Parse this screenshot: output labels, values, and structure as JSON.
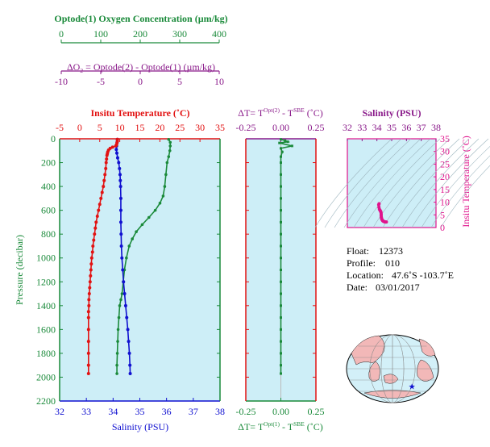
{
  "colors": {
    "oxygen": "#1a8a3a",
    "delta": "#8a1a8a",
    "temperature": "#e21212",
    "salinity": "#1010d0",
    "pressure": "#1a8a3a",
    "ts_points": "#e0138c",
    "panel_bg": "#cdeef7",
    "land": "#f2b8b8",
    "ocean": "#d3f0f8",
    "star": "#1010d0"
  },
  "axes": {
    "oxygen": {
      "label": "Optode(1) Oxygen Concentration (µm/kg)",
      "ticks": [
        "0",
        "100",
        "200",
        "300",
        "400"
      ],
      "range": [
        0,
        400
      ]
    },
    "delta_o2": {
      "label_parts": [
        "ΔO",
        "2",
        " = Optode(2) - Optode(1)   (µm/kg)"
      ],
      "ticks": [
        "-10",
        "-5",
        "0",
        "5",
        "10"
      ],
      "range": [
        -10,
        10
      ]
    },
    "temperature": {
      "label": "Insitu Temperature (˚C)",
      "ticks": [
        "-5",
        "0",
        "5",
        "10",
        "15",
        "20",
        "25",
        "30",
        "35"
      ],
      "range": [
        -5,
        35
      ]
    },
    "salinity": {
      "label": "Salinity (PSU)",
      "ticks": [
        "32",
        "33",
        "34",
        "35",
        "36",
        "37",
        "38"
      ],
      "range": [
        32,
        38
      ]
    },
    "pressure": {
      "label": "Pressure (decibar)",
      "ticks": [
        "0",
        "200",
        "400",
        "600",
        "800",
        "1000",
        "1200",
        "1400",
        "1600",
        "1800",
        "2000",
        "2200"
      ],
      "range": [
        0,
        2200
      ]
    },
    "delta_t_top": {
      "label_parts": [
        "ΔT= T",
        "Opt(2)",
        " - T",
        "SBE",
        " (˚C)"
      ],
      "ticks": [
        "-0.25",
        "0.00",
        "0.25"
      ],
      "range": [
        -0.25,
        0.25
      ]
    },
    "delta_t_bottom": {
      "label_parts": [
        "ΔT= T",
        "Opt(1)",
        " - T",
        "SBE",
        " (˚C)"
      ],
      "ticks": [
        "-0.25",
        "0.00",
        "0.25"
      ],
      "range": [
        -0.25,
        0.25
      ]
    },
    "ts_salinity": {
      "label": "Salinity (PSU)",
      "ticks": [
        "32",
        "33",
        "34",
        "35",
        "36",
        "37",
        "38"
      ],
      "range": [
        32,
        38
      ]
    },
    "ts_temperature": {
      "label": "Insitu Temperature (˚C)",
      "ticks": [
        "0",
        "5",
        "10",
        "15",
        "20",
        "25",
        "30",
        "35"
      ],
      "range": [
        0,
        35
      ]
    }
  },
  "info": {
    "float_label": "Float:",
    "float_value": "12373",
    "profile_label": "Profile:",
    "profile_value": "010",
    "location_label": "Location:",
    "location_value": "47.6˚S  -103.7˚E",
    "date_label": "Date:",
    "date_value": "03/01/2017"
  },
  "chart_data": [
    {
      "type": "line",
      "name": "profile-temperature",
      "x_axis": "Insitu Temperature (˚C)",
      "y_axis": "Pressure (decibar)",
      "points": [
        [
          9.4,
          5
        ],
        [
          9.4,
          20
        ],
        [
          9.3,
          35
        ],
        [
          9.2,
          50
        ],
        [
          9.0,
          60
        ],
        [
          8.2,
          70
        ],
        [
          7.6,
          80
        ],
        [
          7.2,
          95
        ],
        [
          7.0,
          110
        ],
        [
          6.9,
          125
        ],
        [
          6.8,
          140
        ],
        [
          6.7,
          170
        ],
        [
          6.6,
          200
        ],
        [
          6.5,
          250
        ],
        [
          6.3,
          300
        ],
        [
          6.1,
          350
        ],
        [
          5.9,
          400
        ],
        [
          5.6,
          450
        ],
        [
          5.3,
          500
        ],
        [
          5.0,
          550
        ],
        [
          4.7,
          600
        ],
        [
          4.4,
          650
        ],
        [
          4.1,
          700
        ],
        [
          3.9,
          750
        ],
        [
          3.7,
          800
        ],
        [
          3.5,
          850
        ],
        [
          3.3,
          900
        ],
        [
          3.2,
          950
        ],
        [
          3.0,
          1000
        ],
        [
          2.9,
          1050
        ],
        [
          2.8,
          1100
        ],
        [
          2.7,
          1150
        ],
        [
          2.6,
          1200
        ],
        [
          2.5,
          1250
        ],
        [
          2.4,
          1300
        ],
        [
          2.3,
          1350
        ],
        [
          2.3,
          1400
        ],
        [
          2.2,
          1450
        ],
        [
          2.2,
          1500
        ],
        [
          2.2,
          1600
        ],
        [
          2.2,
          1700
        ],
        [
          2.2,
          1800
        ],
        [
          2.2,
          1900
        ],
        [
          2.2,
          1970
        ]
      ]
    },
    {
      "type": "line",
      "name": "profile-salinity",
      "x_axis": "Salinity (PSU)",
      "y_axis": "Pressure (decibar)",
      "points": [
        [
          34.16,
          5
        ],
        [
          34.15,
          30
        ],
        [
          34.13,
          60
        ],
        [
          34.12,
          90
        ],
        [
          34.14,
          120
        ],
        [
          34.17,
          160
        ],
        [
          34.21,
          200
        ],
        [
          34.24,
          250
        ],
        [
          34.26,
          300
        ],
        [
          34.27,
          350
        ],
        [
          34.28,
          400
        ],
        [
          34.29,
          500
        ],
        [
          34.29,
          600
        ],
        [
          34.29,
          700
        ],
        [
          34.3,
          800
        ],
        [
          34.31,
          900
        ],
        [
          34.33,
          1000
        ],
        [
          34.36,
          1100
        ],
        [
          34.39,
          1200
        ],
        [
          34.43,
          1300
        ],
        [
          34.47,
          1400
        ],
        [
          34.51,
          1500
        ],
        [
          34.55,
          1600
        ],
        [
          34.58,
          1700
        ],
        [
          34.61,
          1800
        ],
        [
          34.63,
          1900
        ],
        [
          34.64,
          1970
        ]
      ]
    },
    {
      "type": "line",
      "name": "profile-oxygen",
      "x_axis": "Optode(1) Oxygen Concentration (µm/kg)",
      "y_axis": "Pressure (decibar)",
      "points": [
        [
          272,
          5
        ],
        [
          276,
          30
        ],
        [
          276,
          60
        ],
        [
          275,
          100
        ],
        [
          272,
          150
        ],
        [
          268,
          200
        ],
        [
          265,
          300
        ],
        [
          262,
          400
        ],
        [
          258,
          480
        ],
        [
          250,
          540
        ],
        [
          238,
          600
        ],
        [
          222,
          660
        ],
        [
          205,
          720
        ],
        [
          190,
          780
        ],
        [
          180,
          840
        ],
        [
          172,
          900
        ],
        [
          165,
          1000
        ],
        [
          160,
          1100
        ],
        [
          157,
          1200
        ],
        [
          154,
          1300
        ],
        [
          151,
          1350
        ],
        [
          148,
          1400
        ],
        [
          146,
          1500
        ],
        [
          144,
          1600
        ],
        [
          143,
          1700
        ],
        [
          142,
          1800
        ],
        [
          141,
          1900
        ],
        [
          141,
          1970
        ]
      ]
    },
    {
      "type": "scatter",
      "name": "delta-t",
      "x_axis": "ΔT (˚C)",
      "y_axis": "Pressure (decibar)",
      "points": [
        [
          0.0,
          5
        ],
        [
          0.03,
          15
        ],
        [
          0.05,
          25
        ],
        [
          -0.01,
          35
        ],
        [
          0.08,
          60
        ],
        [
          0.0,
          80
        ],
        [
          0.01,
          110
        ],
        [
          0.0,
          150
        ],
        [
          0.0,
          200
        ],
        [
          0.0,
          300
        ],
        [
          0.0,
          400
        ],
        [
          0.0,
          500
        ],
        [
          0.0,
          600
        ],
        [
          0.0,
          700
        ],
        [
          0.0,
          800
        ],
        [
          0.0,
          900
        ],
        [
          0.0,
          1000
        ],
        [
          0.0,
          1100
        ],
        [
          0.0,
          1200
        ],
        [
          0.0,
          1300
        ],
        [
          0.0,
          1400
        ],
        [
          0.0,
          1500
        ],
        [
          0.0,
          1600
        ],
        [
          0.0,
          1700
        ],
        [
          0.0,
          1800
        ],
        [
          0.0,
          1900
        ],
        [
          0.0,
          1970
        ]
      ]
    },
    {
      "type": "scatter",
      "name": "ts-diagram",
      "x_axis": "Salinity (PSU)",
      "y_axis": "Insitu Temperature (˚C)",
      "points": [
        [
          34.15,
          9.4
        ],
        [
          34.12,
          9.0
        ],
        [
          34.14,
          8.0
        ],
        [
          34.17,
          7.2
        ],
        [
          34.21,
          6.8
        ],
        [
          34.24,
          6.5
        ],
        [
          34.26,
          6.3
        ],
        [
          34.28,
          5.9
        ],
        [
          34.29,
          5.3
        ],
        [
          34.29,
          4.7
        ],
        [
          34.3,
          4.1
        ],
        [
          34.31,
          3.7
        ],
        [
          34.33,
          3.3
        ],
        [
          34.36,
          3.0
        ],
        [
          34.39,
          2.7
        ],
        [
          34.43,
          2.5
        ],
        [
          34.47,
          2.4
        ],
        [
          34.51,
          2.3
        ],
        [
          34.55,
          2.2
        ],
        [
          34.6,
          2.2
        ],
        [
          34.64,
          2.2
        ]
      ]
    },
    {
      "type": "map",
      "name": "location-map",
      "marker": {
        "lat": -47.6,
        "lon": -103.7
      }
    }
  ]
}
